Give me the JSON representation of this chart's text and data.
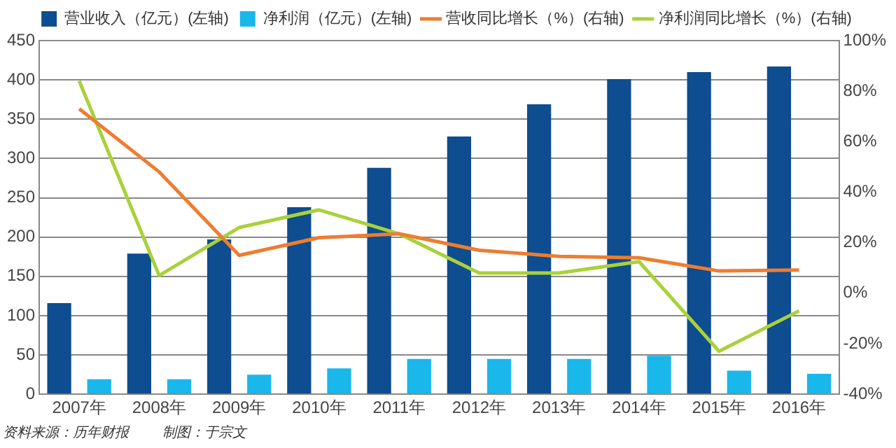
{
  "chart_data": {
    "type": "bar",
    "categories": [
      "2007年",
      "2008年",
      "2009年",
      "2010年",
      "2011年",
      "2012年",
      "2013年",
      "2014年",
      "2015年",
      "2016年"
    ],
    "series": [
      {
        "name": "营业收入（亿元）(左轴)",
        "color": "#0e4d8f",
        "values": [
          116,
          179,
          197,
          238,
          288,
          328,
          369,
          401,
          410,
          417
        ]
      },
      {
        "name": "净利润（亿元）(左轴)",
        "color": "#1ab7ea",
        "values": [
          19,
          19,
          25,
          33,
          45,
          45,
          45,
          49,
          30,
          26
        ]
      },
      {
        "name": "营收同比增长（%）(右轴)",
        "type": "line",
        "axis": "y2",
        "color": "#ed7d31",
        "values": [
          73,
          48,
          15,
          22,
          23.5,
          17,
          14.6,
          14,
          8.8,
          9.2
        ]
      },
      {
        "name": "净利润同比增长（%）(右轴)",
        "type": "line",
        "axis": "y2",
        "color": "#a9d13a",
        "values": [
          84,
          7,
          26,
          33,
          23.5,
          8,
          8,
          12.5,
          -23,
          -7
        ]
      }
    ],
    "ylim": [
      0,
      450
    ],
    "yticks": [
      0,
      50,
      100,
      150,
      200,
      250,
      300,
      350,
      400,
      450
    ],
    "y2lim": [
      -40,
      100
    ],
    "y2ticks": [
      {
        "value": -40,
        "label": "-40%"
      },
      {
        "value": -20,
        "label": "-20%"
      },
      {
        "value": 0,
        "label": "0%"
      },
      {
        "value": 20,
        "label": "20%"
      },
      {
        "value": 40,
        "label": "40%"
      },
      {
        "value": 60,
        "label": "60%"
      },
      {
        "value": 80,
        "label": "80%"
      },
      {
        "value": 100,
        "label": "100%"
      }
    ],
    "grid": "y",
    "legend": "top",
    "marker": "none",
    "annotations": [
      "资料来源：历年财报",
      "制图：于宗文"
    ]
  }
}
